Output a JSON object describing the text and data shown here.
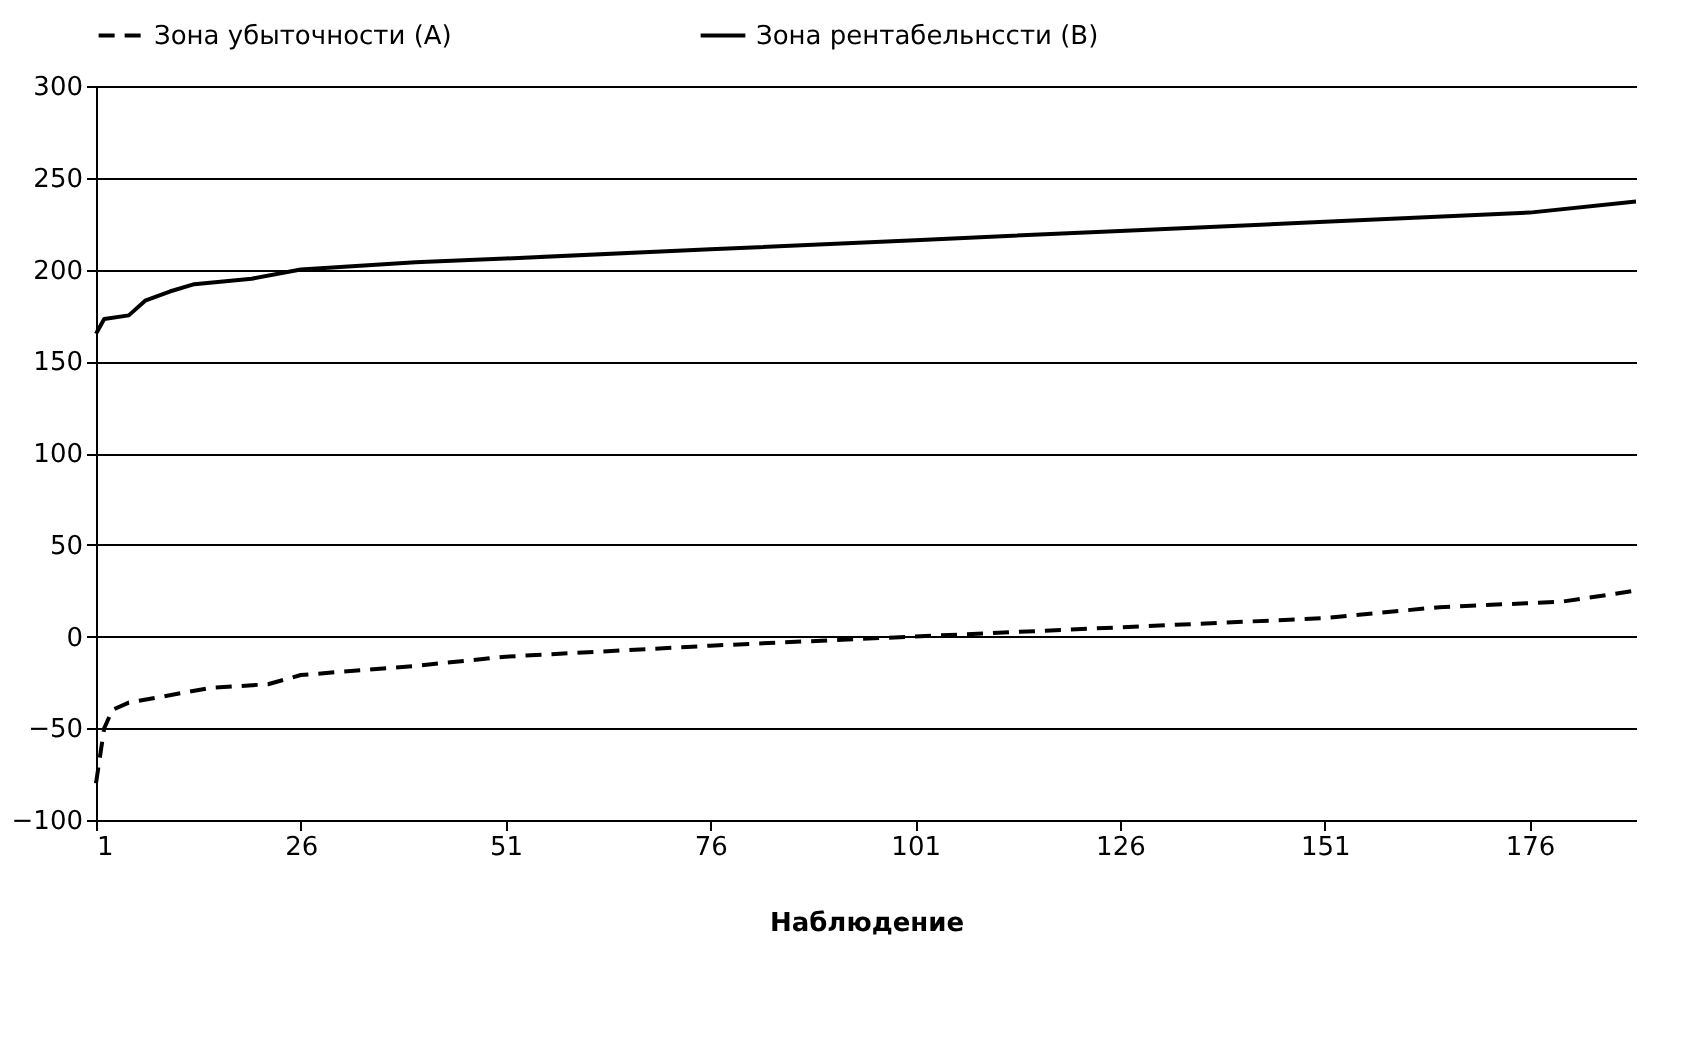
{
  "chart_data": {
    "type": "line",
    "xlabel": "Наблюдение",
    "xlim": [
      1,
      189
    ],
    "xticks": [
      1,
      26,
      51,
      76,
      101,
      126,
      151,
      176
    ],
    "ylim": [
      -100,
      300
    ],
    "yticks": [
      -100,
      -50,
      0,
      50,
      100,
      150,
      200,
      250,
      300
    ],
    "grid": "y",
    "legend": "top",
    "series": [
      {
        "name": "Зона убыточности (A)",
        "color": "#000000",
        "line_style": "dashed",
        "x": [
          1,
          2,
          3,
          5,
          10,
          15,
          22,
          26,
          40,
          51,
          76,
          101,
          126,
          151,
          165,
          180,
          189
        ],
        "values": [
          -80,
          -50,
          -40,
          -36,
          -32,
          -28,
          -26,
          -21,
          -16,
          -11,
          -5,
          0,
          5,
          10,
          16,
          19,
          25
        ]
      },
      {
        "name": "Зона рентабельнсcти (B)",
        "color": "#000000",
        "line_style": "solid",
        "x": [
          1,
          2,
          5,
          7,
          10,
          13,
          20,
          26,
          40,
          51,
          76,
          101,
          126,
          151,
          176,
          189
        ],
        "values": [
          165,
          173,
          175,
          183,
          188,
          192,
          195,
          200,
          204,
          206,
          211,
          216,
          221,
          226,
          231,
          237
        ]
      }
    ]
  }
}
